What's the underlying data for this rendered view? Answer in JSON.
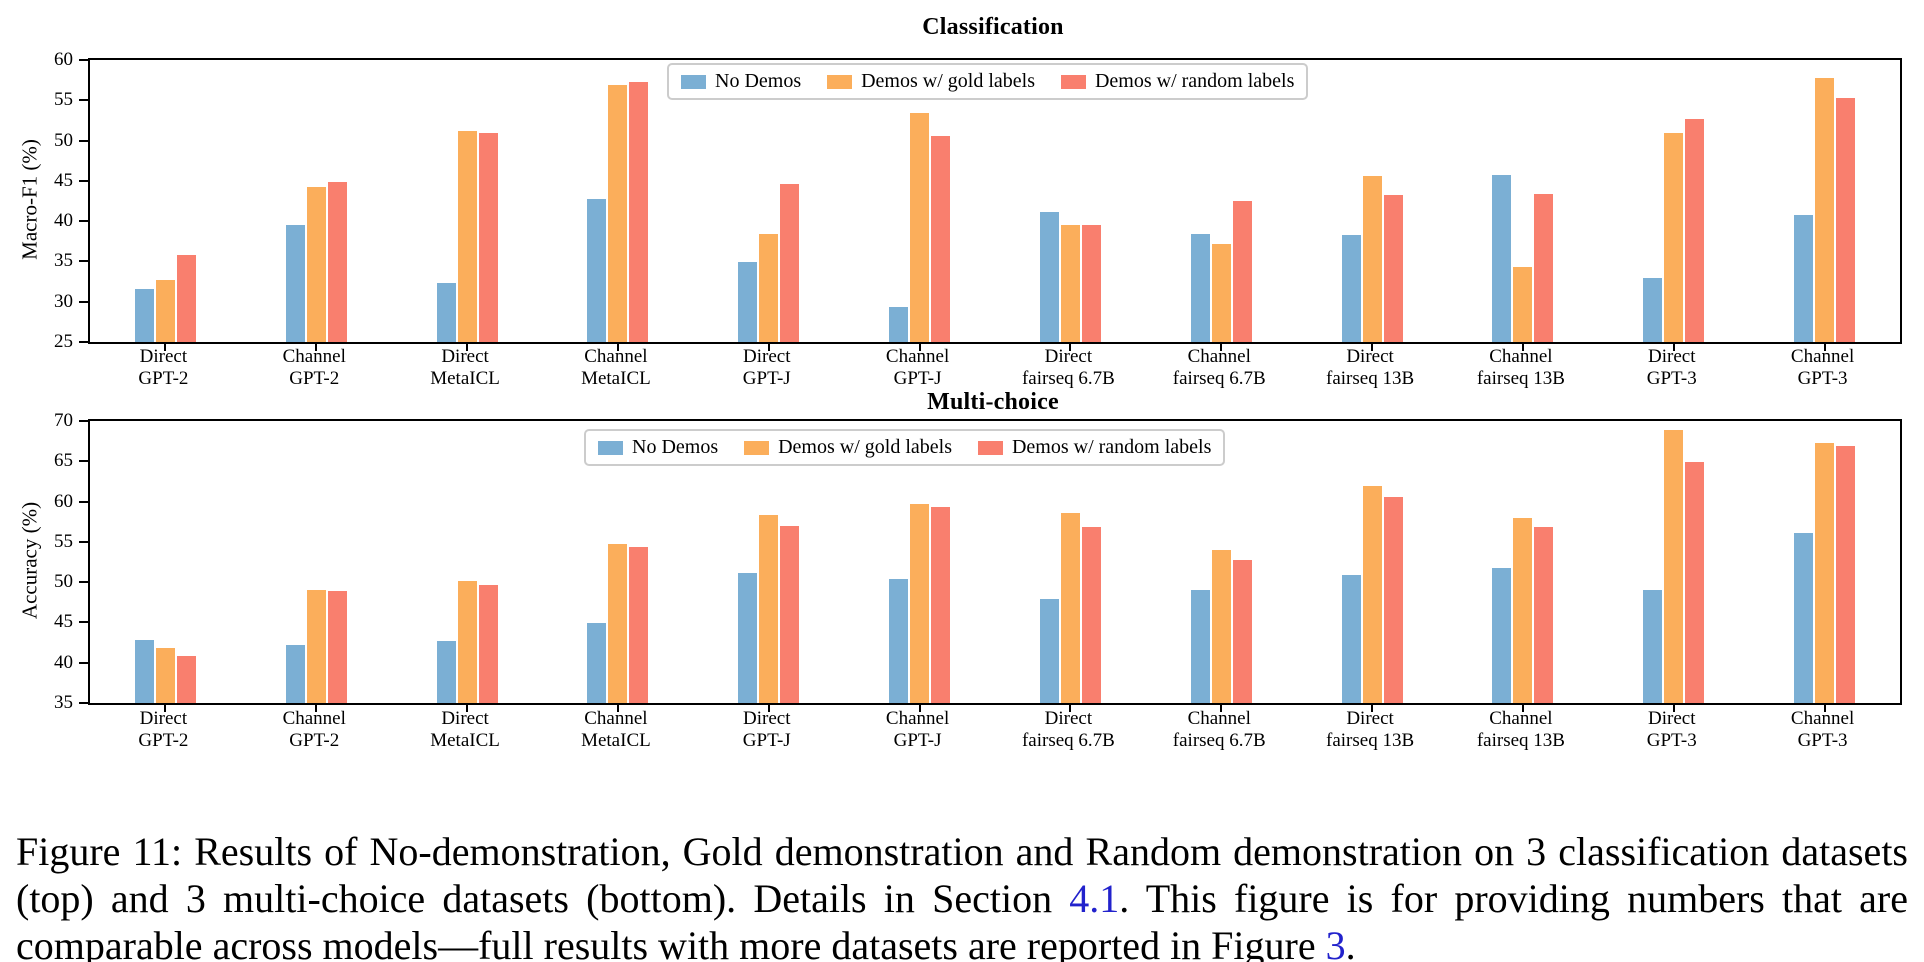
{
  "colors": {
    "series": [
      "#7bafd4",
      "#fbae5b",
      "#f97f6e"
    ],
    "link": "#2222cc",
    "spine": "#000000",
    "legend_border": "#cccccc"
  },
  "legend": {
    "labels": [
      "No Demos",
      "Demos w/ gold labels",
      "Demos w/ random labels"
    ]
  },
  "chart_data": [
    {
      "type": "bar",
      "title": "Classification",
      "ylabel": "Macro-F1 (%)",
      "xlabel": "",
      "ylim": [
        25,
        60
      ],
      "yticks": [
        25,
        30,
        35,
        40,
        45,
        50,
        55,
        60
      ],
      "grid": false,
      "legend_position": "upper center (inside plot)",
      "categories": [
        "Direct\nGPT-2",
        "Channel\nGPT-2",
        "Direct\nMetaICL",
        "Channel\nMetaICL",
        "Direct\nGPT-J",
        "Channel\nGPT-J",
        "Direct\nfairseq 6.7B",
        "Channel\nfairseq 6.7B",
        "Direct\nfairseq 13B",
        "Channel\nfairseq 13B",
        "Direct\nGPT-3",
        "Channel\nGPT-3"
      ],
      "series": [
        {
          "name": "No Demos",
          "values": [
            31.7,
            39.6,
            32.4,
            42.9,
            35.1,
            29.5,
            41.3,
            38.5,
            38.4,
            45.8,
            33.1,
            40.9
          ]
        },
        {
          "name": "Demos w/ gold labels",
          "values": [
            32.8,
            44.4,
            51.3,
            57.0,
            38.5,
            53.6,
            39.7,
            37.3,
            45.7,
            34.4,
            51.1,
            57.9
          ]
        },
        {
          "name": "Demos w/ random labels",
          "values": [
            35.9,
            45.0,
            51.1,
            57.4,
            44.7,
            50.7,
            39.7,
            42.6,
            43.4,
            43.5,
            52.8,
            55.4
          ]
        }
      ]
    },
    {
      "type": "bar",
      "title": "Multi-choice",
      "ylabel": "Accuracy (%)",
      "xlabel": "",
      "ylim": [
        35,
        70
      ],
      "yticks": [
        35,
        40,
        45,
        50,
        55,
        60,
        65,
        70
      ],
      "grid": false,
      "legend_position": "upper center (inside plot)",
      "categories": [
        "Direct\nGPT-2",
        "Channel\nGPT-2",
        "Direct\nMetaICL",
        "Channel\nMetaICL",
        "Direct\nGPT-J",
        "Channel\nGPT-J",
        "Direct\nfairseq 6.7B",
        "Channel\nfairseq 6.7B",
        "Direct\nfairseq 13B",
        "Channel\nfairseq 13B",
        "Direct\nGPT-3",
        "Channel\nGPT-3"
      ],
      "series": [
        {
          "name": "No Demos",
          "values": [
            42.9,
            42.3,
            42.8,
            45.0,
            51.3,
            50.5,
            48.0,
            49.1,
            51.0,
            51.9,
            49.1,
            56.2
          ]
        },
        {
          "name": "Demos w/ gold labels",
          "values": [
            41.9,
            49.1,
            50.3,
            54.8,
            58.5,
            59.8,
            58.7,
            54.1,
            62.1,
            58.1,
            69.0,
            67.4
          ]
        },
        {
          "name": "Demos w/ random labels",
          "values": [
            41.0,
            49.0,
            49.8,
            54.5,
            57.1,
            59.5,
            57.0,
            52.9,
            60.7,
            57.0,
            65.0,
            67.0
          ]
        }
      ]
    }
  ],
  "caption": {
    "parts": [
      {
        "text": "Figure 11:  Results of No-demonstration, Gold demonstration and Random demonstration on 3 classification datasets (top) and 3 multi-choice datasets (bottom). Details in Section ",
        "link": false
      },
      {
        "text": "4.1",
        "link": true
      },
      {
        "text": ". This figure is for providing numbers that are comparable across models—full results with more datasets are reported in Figure ",
        "link": false
      },
      {
        "text": "3",
        "link": true
      },
      {
        "text": ".",
        "link": false
      }
    ]
  }
}
